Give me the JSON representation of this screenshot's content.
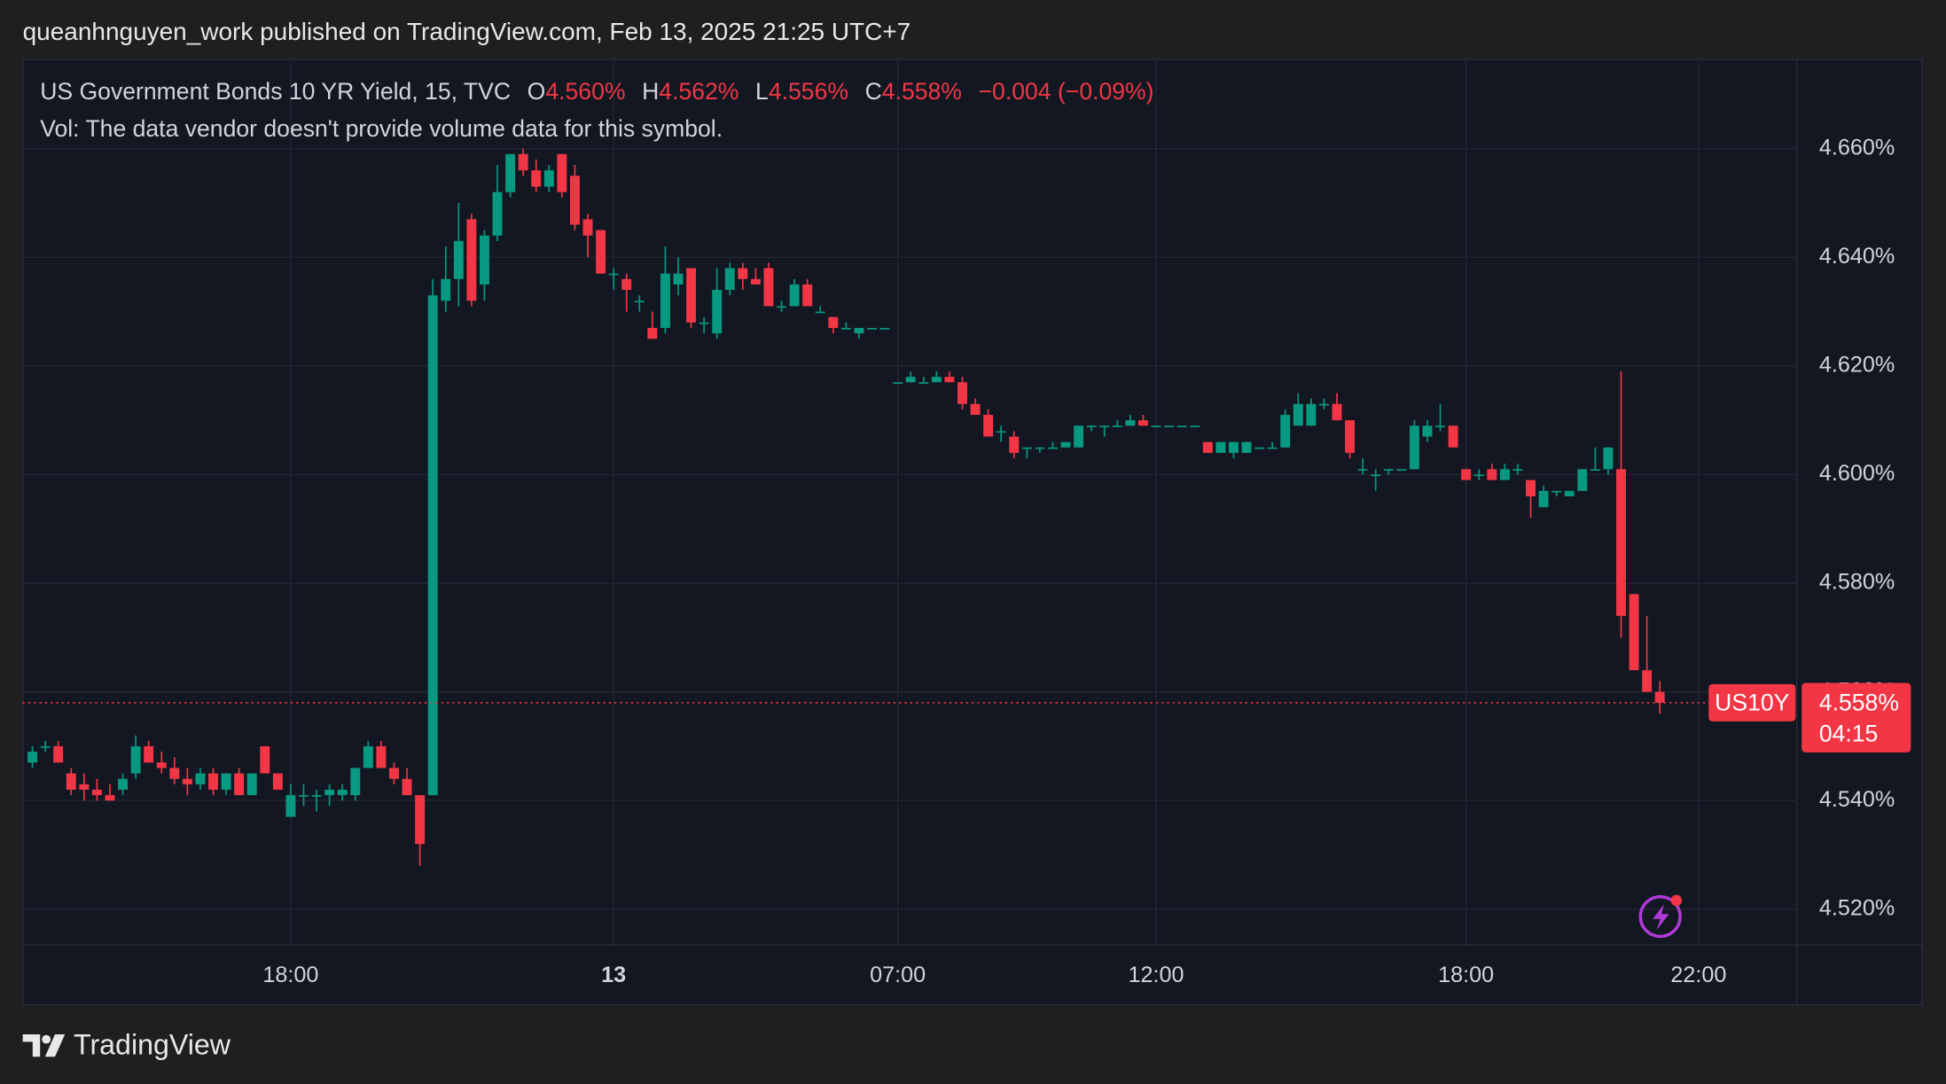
{
  "header": {
    "published": "queanhnguyen_work published on TradingView.com, Feb 13, 2025 21:25 UTC+7"
  },
  "footer": {
    "brand": "TradingView"
  },
  "chart_data": {
    "type": "candlestick",
    "title": "US Government Bonds 10 YR Yield, 15, TVC",
    "ohlc_labels": [
      "O",
      "H",
      "L",
      "C"
    ],
    "ohlc_values": [
      "4.560%",
      "4.562%",
      "4.556%",
      "4.558%"
    ],
    "change": "−0.004 (−0.09%)",
    "volume_note": "Vol: The data vendor doesn't provide volume data for this symbol.",
    "symbol_tag": "US10Y",
    "last_price_label": "4.558%",
    "countdown": "04:15",
    "up_color": "#089981",
    "down_color": "#f23645",
    "grid": true,
    "ylim": [
      4.5134,
      4.6764
    ],
    "yticks": [
      {
        "value": 4.52,
        "label": "4.520%"
      },
      {
        "value": 4.54,
        "label": "4.540%"
      },
      {
        "value": 4.56,
        "label": "4.560%"
      },
      {
        "value": 4.58,
        "label": "4.580%"
      },
      {
        "value": 4.6,
        "label": "4.600%"
      },
      {
        "value": 4.62,
        "label": "4.620%"
      },
      {
        "value": 4.64,
        "label": "4.640%"
      },
      {
        "value": 4.66,
        "label": "4.660%"
      }
    ],
    "xlim": [
      -0.75,
      136.6
    ],
    "xticks": [
      {
        "value": 20,
        "label": "18:00"
      },
      {
        "value": 45,
        "label": "13"
      },
      {
        "value": 67,
        "label": "07:00"
      },
      {
        "value": 87,
        "label": "12:00"
      },
      {
        "value": 111,
        "label": "18:00"
      },
      {
        "value": 129,
        "label": "22:00"
      }
    ],
    "ohlc": [
      [
        4.547,
        4.55,
        4.546,
        4.549
      ],
      [
        4.55,
        4.551,
        4.549,
        4.55
      ],
      [
        4.55,
        4.551,
        4.547,
        4.547
      ],
      [
        4.545,
        4.546,
        4.541,
        4.542
      ],
      [
        4.543,
        4.545,
        4.54,
        4.542
      ],
      [
        4.542,
        4.544,
        4.54,
        4.541
      ],
      [
        4.541,
        4.543,
        4.54,
        4.54
      ],
      [
        4.542,
        4.545,
        4.541,
        4.544
      ],
      [
        4.545,
        4.552,
        4.544,
        4.55
      ],
      [
        4.55,
        4.551,
        4.547,
        4.547
      ],
      [
        4.547,
        4.549,
        4.545,
        4.546
      ],
      [
        4.546,
        4.548,
        4.543,
        4.544
      ],
      [
        4.544,
        4.546,
        4.541,
        4.543
      ],
      [
        4.543,
        4.546,
        4.542,
        4.545
      ],
      [
        4.545,
        4.546,
        4.541,
        4.542
      ],
      [
        4.542,
        4.545,
        4.541,
        4.545
      ],
      [
        4.545,
        4.546,
        4.541,
        4.541
      ],
      [
        4.541,
        4.545,
        4.541,
        4.545
      ],
      [
        4.55,
        4.55,
        4.545,
        4.545
      ],
      [
        4.545,
        4.545,
        4.542,
        4.542
      ],
      [
        4.537,
        4.543,
        4.537,
        4.541
      ],
      [
        4.541,
        4.543,
        4.539,
        4.541
      ],
      [
        4.541,
        4.542,
        4.538,
        4.541
      ],
      [
        4.541,
        4.543,
        4.539,
        4.542
      ],
      [
        4.541,
        4.543,
        4.54,
        4.542
      ],
      [
        4.541,
        4.546,
        4.54,
        4.546
      ],
      [
        4.546,
        4.551,
        4.546,
        4.55
      ],
      [
        4.55,
        4.551,
        4.546,
        4.546
      ],
      [
        4.546,
        4.547,
        4.543,
        4.544
      ],
      [
        4.544,
        4.546,
        4.541,
        4.541
      ],
      [
        4.541,
        4.541,
        4.528,
        4.532
      ],
      [
        4.541,
        4.636,
        4.541,
        4.633
      ],
      [
        4.632,
        4.642,
        4.63,
        4.636
      ],
      [
        4.636,
        4.65,
        4.631,
        4.643
      ],
      [
        4.647,
        4.648,
        4.631,
        4.632
      ],
      [
        4.635,
        4.645,
        4.632,
        4.644
      ],
      [
        4.644,
        4.657,
        4.643,
        4.652
      ],
      [
        4.652,
        4.659,
        4.651,
        4.659
      ],
      [
        4.659,
        4.66,
        4.655,
        4.656
      ],
      [
        4.656,
        4.658,
        4.652,
        4.653
      ],
      [
        4.653,
        4.657,
        4.652,
        4.656
      ],
      [
        4.659,
        4.659,
        4.651,
        4.652
      ],
      [
        4.655,
        4.657,
        4.645,
        4.646
      ],
      [
        4.647,
        4.648,
        4.64,
        4.644
      ],
      [
        4.645,
        4.645,
        4.637,
        4.637
      ],
      [
        4.637,
        4.638,
        4.634,
        4.637
      ],
      [
        4.636,
        4.637,
        4.63,
        4.634
      ],
      [
        4.632,
        4.633,
        4.63,
        4.632
      ],
      [
        4.627,
        4.63,
        4.625,
        4.625
      ],
      [
        4.627,
        4.642,
        4.626,
        4.637
      ],
      [
        4.635,
        4.64,
        4.633,
        4.637
      ],
      [
        4.638,
        4.638,
        4.627,
        4.628
      ],
      [
        4.628,
        4.629,
        4.626,
        4.628
      ],
      [
        4.626,
        4.638,
        4.625,
        4.634
      ],
      [
        4.634,
        4.639,
        4.633,
        4.638
      ],
      [
        4.638,
        4.639,
        4.634,
        4.636
      ],
      [
        4.636,
        4.638,
        4.635,
        4.635
      ],
      [
        4.638,
        4.639,
        4.631,
        4.631
      ],
      [
        4.631,
        4.632,
        4.63,
        4.631
      ],
      [
        4.631,
        4.636,
        4.631,
        4.635
      ],
      [
        4.635,
        4.636,
        4.631,
        4.631
      ],
      [
        4.63,
        4.631,
        4.63,
        4.63
      ],
      [
        4.629,
        4.629,
        4.626,
        4.627
      ],
      [
        4.627,
        4.628,
        4.627,
        4.627
      ],
      [
        4.626,
        4.627,
        4.625,
        4.627
      ],
      [
        4.627,
        4.627,
        4.627,
        4.627
      ],
      [
        4.627,
        4.627,
        4.627,
        4.627
      ],
      [
        4.617,
        4.617,
        4.617,
        4.617
      ],
      [
        4.617,
        4.619,
        4.617,
        4.618
      ],
      [
        4.617,
        4.618,
        4.617,
        4.617
      ],
      [
        4.617,
        4.619,
        4.617,
        4.618
      ],
      [
        4.618,
        4.619,
        4.617,
        4.617
      ],
      [
        4.617,
        4.618,
        4.612,
        4.613
      ],
      [
        4.613,
        4.614,
        4.611,
        4.611
      ],
      [
        4.611,
        4.612,
        4.607,
        4.607
      ],
      [
        4.608,
        4.609,
        4.606,
        4.608
      ],
      [
        4.607,
        4.608,
        4.603,
        4.604
      ],
      [
        4.605,
        4.605,
        4.603,
        4.605
      ],
      [
        4.605,
        4.605,
        4.604,
        4.605
      ],
      [
        4.605,
        4.606,
        4.605,
        4.605
      ],
      [
        4.605,
        4.606,
        4.605,
        4.606
      ],
      [
        4.605,
        4.609,
        4.605,
        4.609
      ],
      [
        4.609,
        4.609,
        4.608,
        4.609
      ],
      [
        4.609,
        4.609,
        4.607,
        4.609
      ],
      [
        4.609,
        4.61,
        4.609,
        4.609
      ],
      [
        4.609,
        4.611,
        4.609,
        4.61
      ],
      [
        4.61,
        4.611,
        4.609,
        4.609
      ],
      [
        4.609,
        4.609,
        4.609,
        4.609
      ],
      [
        4.609,
        4.609,
        4.609,
        4.609
      ],
      [
        4.609,
        4.609,
        4.609,
        4.609
      ],
      [
        4.609,
        4.609,
        4.609,
        4.609
      ],
      [
        4.606,
        4.606,
        4.604,
        4.604
      ],
      [
        4.604,
        4.606,
        4.604,
        4.606
      ],
      [
        4.604,
        4.606,
        4.603,
        4.606
      ],
      [
        4.604,
        4.606,
        4.604,
        4.606
      ],
      [
        4.605,
        4.605,
        4.605,
        4.605
      ],
      [
        4.605,
        4.606,
        4.605,
        4.605
      ],
      [
        4.605,
        4.612,
        4.605,
        4.611
      ],
      [
        4.609,
        4.615,
        4.609,
        4.613
      ],
      [
        4.609,
        4.614,
        4.609,
        4.613
      ],
      [
        4.613,
        4.614,
        4.612,
        4.613
      ],
      [
        4.613,
        4.615,
        4.61,
        4.61
      ],
      [
        4.61,
        4.61,
        4.603,
        4.604
      ],
      [
        4.601,
        4.603,
        4.6,
        4.601
      ],
      [
        4.6,
        4.601,
        4.597,
        4.6
      ],
      [
        4.601,
        4.601,
        4.6,
        4.601
      ],
      [
        4.601,
        4.601,
        4.601,
        4.601
      ],
      [
        4.601,
        4.61,
        4.601,
        4.609
      ],
      [
        4.607,
        4.61,
        4.606,
        4.609
      ],
      [
        4.609,
        4.613,
        4.608,
        4.609
      ],
      [
        4.609,
        4.609,
        4.605,
        4.605
      ],
      [
        4.601,
        4.601,
        4.599,
        4.599
      ],
      [
        4.6,
        4.601,
        4.599,
        4.6
      ],
      [
        4.601,
        4.602,
        4.599,
        4.599
      ],
      [
        4.599,
        4.602,
        4.599,
        4.601
      ],
      [
        4.601,
        4.602,
        4.6,
        4.601
      ],
      [
        4.599,
        4.599,
        4.592,
        4.596
      ],
      [
        4.594,
        4.598,
        4.594,
        4.597
      ],
      [
        4.597,
        4.597,
        4.596,
        4.597
      ],
      [
        4.596,
        4.597,
        4.596,
        4.597
      ],
      [
        4.597,
        4.601,
        4.597,
        4.601
      ],
      [
        4.601,
        4.605,
        4.601,
        4.601
      ],
      [
        4.601,
        4.605,
        4.6,
        4.605
      ],
      [
        4.601,
        4.619,
        4.57,
        4.574
      ],
      [
        4.578,
        4.578,
        4.564,
        4.564
      ],
      [
        4.564,
        4.574,
        4.56,
        4.56
      ],
      [
        4.56,
        4.562,
        4.556,
        4.558
      ]
    ]
  }
}
